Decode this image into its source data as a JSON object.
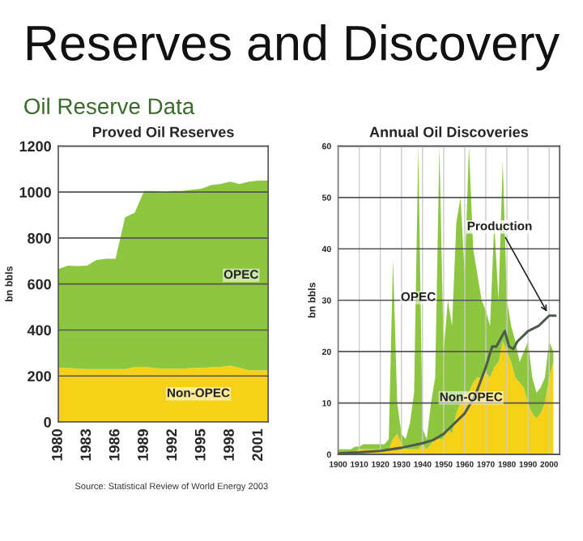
{
  "chart_data": [
    {
      "type": "other",
      "title": "Reserves and Discovery",
      "subtitle": "Oil Reserve Data"
    },
    {
      "type": "area",
      "title": "Proved Oil Reserves",
      "ylabel": "bn bbls",
      "stacked": true,
      "grid": "y",
      "x": [
        1980,
        1981,
        1982,
        1983,
        1984,
        1985,
        1986,
        1987,
        1988,
        1989,
        1990,
        1991,
        1992,
        1993,
        1994,
        1995,
        1996,
        1997,
        1998,
        1999,
        2000,
        2001,
        2002
      ],
      "series": [
        {
          "name": "Non-OPEC",
          "color": "#f7d117",
          "values": [
            235,
            235,
            232,
            230,
            230,
            230,
            230,
            230,
            240,
            240,
            235,
            232,
            232,
            232,
            235,
            235,
            238,
            240,
            245,
            235,
            225,
            225,
            225
          ]
        },
        {
          "name": "OPEC",
          "color": "#8dc63f",
          "values": [
            430,
            445,
            446,
            450,
            475,
            480,
            480,
            660,
            670,
            765,
            770,
            768,
            773,
            773,
            775,
            780,
            792,
            795,
            800,
            800,
            820,
            825,
            825
          ]
        }
      ],
      "xlim": [
        1980,
        2002
      ],
      "xticks": [
        1980,
        1983,
        1986,
        1989,
        1992,
        1995,
        1998,
        2001
      ],
      "ylim": [
        0,
        1200
      ],
      "yticks": [
        0,
        200,
        400,
        600,
        800,
        1000,
        1200
      ],
      "annotations": [
        "Source: Statistical Review of World Energy 2003"
      ]
    },
    {
      "type": "area",
      "title": "Annual Oil Discoveries",
      "ylabel": "bn bbls",
      "stacked": true,
      "grid": true,
      "x": [
        1900,
        1902,
        1904,
        1906,
        1908,
        1910,
        1912,
        1914,
        1916,
        1918,
        1920,
        1922,
        1924,
        1926,
        1928,
        1930,
        1932,
        1934,
        1936,
        1938,
        1940,
        1942,
        1944,
        1946,
        1948,
        1950,
        1952,
        1954,
        1956,
        1958,
        1960,
        1962,
        1964,
        1966,
        1968,
        1970,
        1972,
        1974,
        1976,
        1978,
        1980,
        1982,
        1984,
        1986,
        1988,
        1990,
        1992,
        1994,
        1996,
        1998,
        2000,
        2002
      ],
      "series": [
        {
          "name": "Non-OPEC",
          "color": "#f7d117",
          "values": [
            0.5,
            0.5,
            0.5,
            0.5,
            0.5,
            1,
            1,
            1,
            1,
            1,
            1,
            1,
            1,
            3,
            4,
            2,
            1,
            1,
            1,
            1,
            2,
            1,
            2,
            3,
            3,
            3,
            5,
            4,
            8,
            10,
            12,
            12,
            14,
            15,
            15,
            16,
            15,
            17,
            18,
            22,
            20,
            18,
            15,
            14,
            13,
            10,
            8,
            7,
            8,
            10,
            15,
            18
          ]
        },
        {
          "name": "OPEC",
          "color": "#8dc63f",
          "values": [
            0.5,
            0.5,
            0.5,
            0.5,
            1,
            0.5,
            1,
            1,
            1,
            1,
            1,
            1,
            2,
            35,
            6,
            2,
            2,
            5,
            11,
            59,
            3,
            2,
            8,
            12,
            57,
            17,
            25,
            21,
            37,
            40,
            23,
            48,
            26,
            20,
            15,
            12,
            10,
            28,
            12,
            35,
            10,
            7,
            7,
            4,
            7,
            12,
            7,
            5,
            5,
            5,
            7,
            2
          ]
        },
        {
          "name": "Production",
          "type": "line",
          "color": "#4d5b4d",
          "x": [
            1900,
            1910,
            1920,
            1930,
            1940,
            1945,
            1950,
            1955,
            1960,
            1965,
            1970,
            1973,
            1975,
            1979,
            1981,
            1983,
            1985,
            1990,
            1995,
            2000,
            2003
          ],
          "values": [
            0.2,
            0.4,
            0.7,
            1.3,
            2.2,
            2.8,
            4,
            6,
            8,
            11.5,
            17,
            21,
            21,
            24,
            21,
            20.5,
            22,
            24,
            25,
            27,
            27
          ]
        }
      ],
      "xlim": [
        1900,
        2005
      ],
      "xticks": [
        1900,
        1910,
        1920,
        1930,
        1940,
        1950,
        1960,
        1970,
        1980,
        1990,
        2000
      ],
      "ylim": [
        0,
        60
      ],
      "yticks": [
        0,
        10,
        20,
        30,
        40,
        50,
        60
      ]
    }
  ]
}
